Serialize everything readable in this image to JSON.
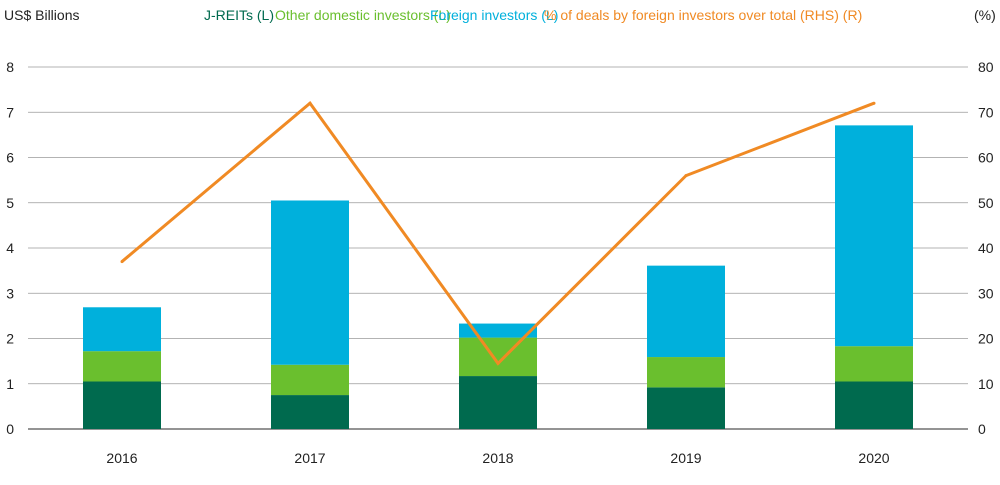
{
  "colors": {
    "jreits": "#006a4e",
    "other_domestic": "#6abf2e",
    "foreign": "#00b0dc",
    "pct_line": "#f08a24",
    "grid": "#9a9a9a",
    "text": "#222222"
  },
  "chart_data": {
    "type": "bar",
    "stacked": true,
    "categories": [
      "2016",
      "2017",
      "2018",
      "2019",
      "2020"
    ],
    "series": [
      {
        "name": "J-REITs (L)",
        "axis": "left",
        "values": [
          1.05,
          0.75,
          1.17,
          0.92,
          1.05
        ]
      },
      {
        "name": "Other domestic investors (L)",
        "axis": "left",
        "values": [
          0.67,
          0.67,
          0.85,
          0.67,
          0.78
        ]
      },
      {
        "name": "Foreign investors (L)",
        "axis": "left",
        "values": [
          0.97,
          3.63,
          0.31,
          2.02,
          4.88
        ]
      },
      {
        "name": "% of deals by foreign investors over total (RHS) (R)",
        "axis": "right",
        "type": "line",
        "values": [
          37,
          72,
          14.5,
          56,
          72
        ]
      }
    ],
    "left_axis": {
      "label": "US$ Billions",
      "ticks": [
        "0",
        "1",
        "2",
        "3",
        "4",
        "5",
        "6",
        "7",
        "8"
      ],
      "ylim": [
        0,
        8
      ]
    },
    "right_axis": {
      "label": "(%)",
      "ticks": [
        "0",
        "10",
        "20",
        "30",
        "40",
        "50",
        "60",
        "70",
        "80"
      ],
      "ylim": [
        0,
        80
      ]
    },
    "grid": true,
    "legend_position": "top"
  }
}
